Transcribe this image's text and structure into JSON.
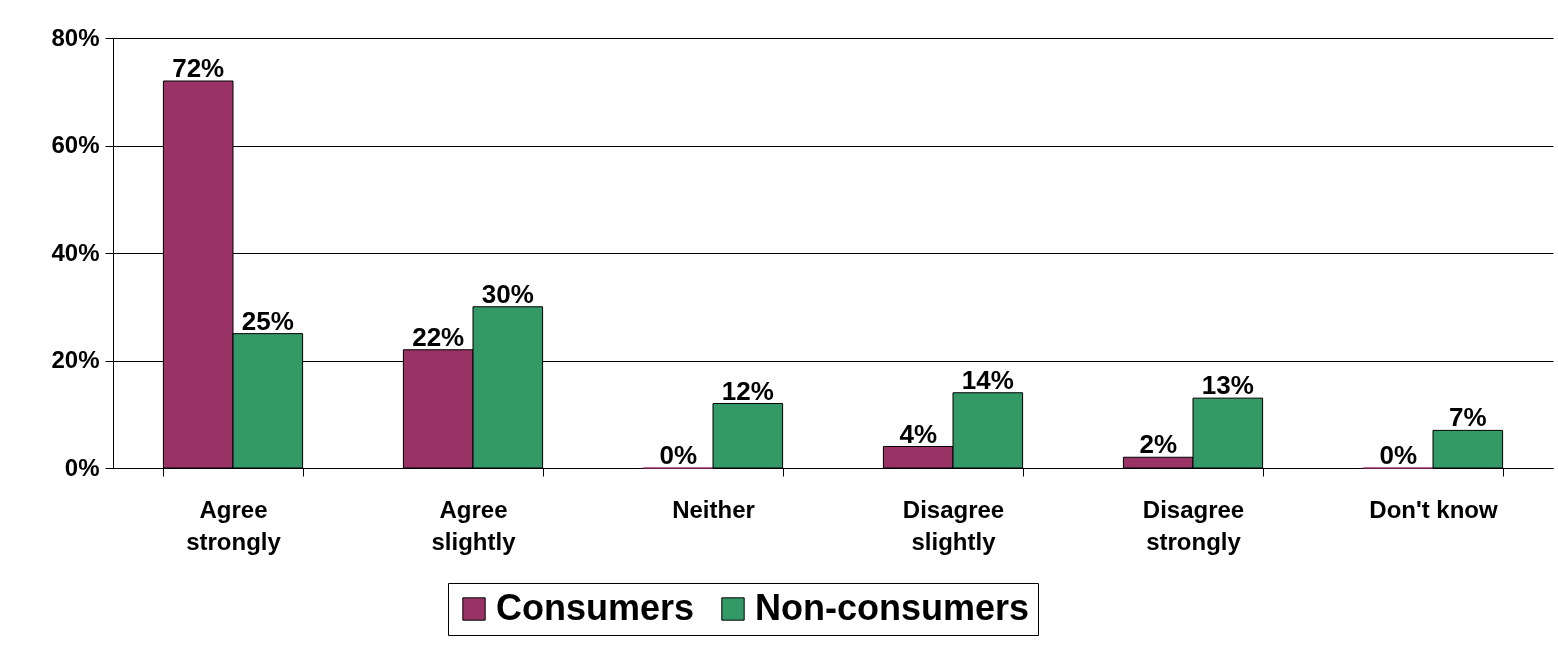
{
  "chart_data": {
    "type": "bar",
    "categories": [
      "Agree strongly",
      "Agree slightly",
      "Neither",
      "Disagree slightly",
      "Disagree strongly",
      "Don't know"
    ],
    "series": [
      {
        "name": "Consumers",
        "color": "#993366",
        "values": [
          72,
          22,
          0,
          4,
          2,
          0
        ],
        "value_labels": [
          "72%",
          "22%",
          "0%",
          "4%",
          "2%",
          "0%"
        ]
      },
      {
        "name": "Non-consumers",
        "color": "#339966",
        "values": [
          25,
          30,
          12,
          14,
          13,
          7
        ],
        "value_labels": [
          "25%",
          "30%",
          "12%",
          "14%",
          "13%",
          "7%"
        ]
      }
    ],
    "ylim": [
      0,
      80
    ],
    "yticks": [
      {
        "value": 0,
        "label": "0%"
      },
      {
        "value": 20,
        "label": "20%"
      },
      {
        "value": 40,
        "label": "40%"
      },
      {
        "value": 60,
        "label": "60%"
      },
      {
        "value": 80,
        "label": "80%"
      }
    ],
    "grid": "y",
    "legend": "bottom"
  }
}
